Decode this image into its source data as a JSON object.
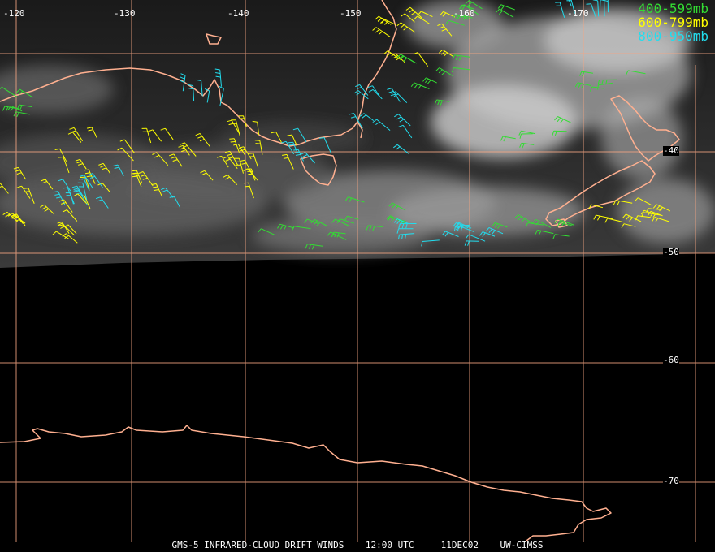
{
  "colors": {
    "grid": "#f4a582",
    "coast": "#ffb090",
    "level_400_599": "#33dd33",
    "level_600_799": "#ffff00",
    "level_800_950": "#22ddee"
  },
  "legend": [
    {
      "label": "400-599mb",
      "color": "#33dd33"
    },
    {
      "label": "600-799mb",
      "color": "#ffff00"
    },
    {
      "label": "800-950mb",
      "color": "#22ddee"
    }
  ],
  "longitude_labels": [
    "-120",
    "-130",
    "-140",
    "-150",
    "-160",
    "-170"
  ],
  "latitude_labels": [
    "-40",
    "-50",
    "-60",
    "-70"
  ],
  "caption": {
    "product": "GMS-5 INFRARED-CLOUD DRIFT WINDS",
    "time": "12:00 UTC",
    "date": "11DEC02",
    "source": "UW-CIMSS"
  }
}
